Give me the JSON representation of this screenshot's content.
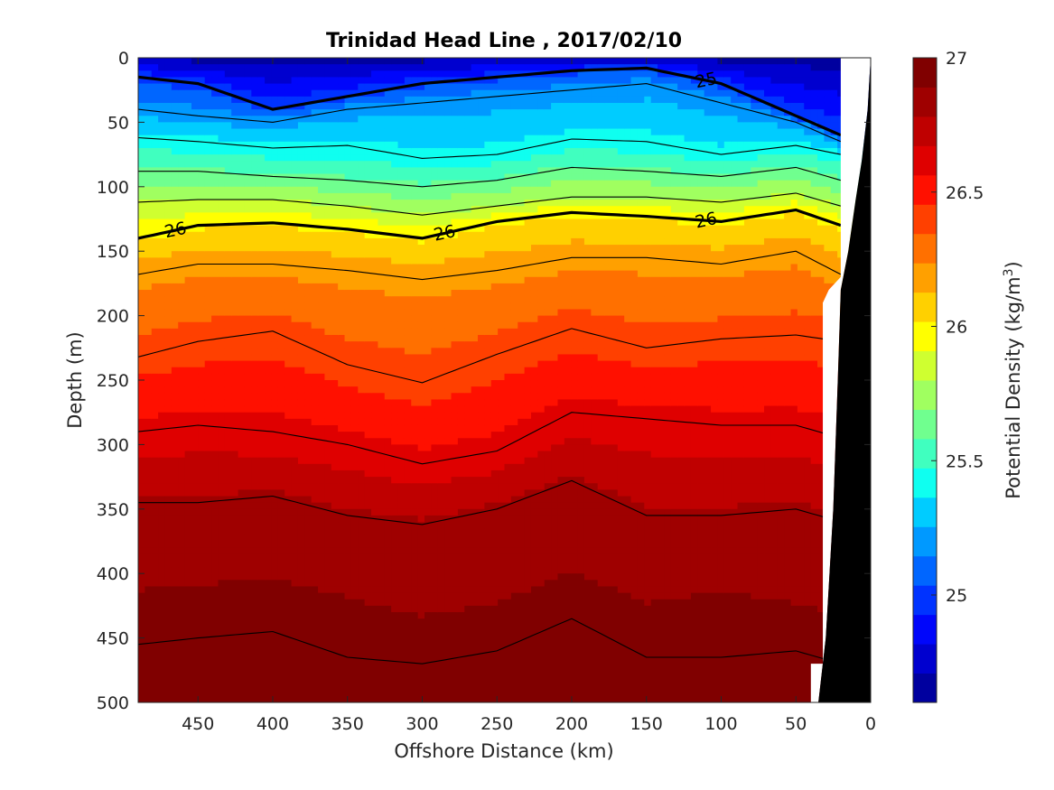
{
  "chart_data": {
    "type": "contour",
    "title": "Trinidad Head Line , 2017/02/10",
    "xlabel": "Offshore Distance (km)",
    "ylabel": "Depth (m)",
    "xlim": [
      490,
      0
    ],
    "ylim": [
      0,
      500
    ],
    "x_reversed": true,
    "y_reversed": true,
    "x_ticks": [
      450,
      400,
      350,
      300,
      250,
      200,
      150,
      100,
      50,
      0
    ],
    "y_ticks": [
      0,
      50,
      100,
      150,
      200,
      250,
      300,
      350,
      400,
      450,
      500
    ],
    "colorbar": {
      "label": "Potential Density (kg/m³)",
      "label_main": "Potential Density (kg/m",
      "label_sup": "3",
      "label_close": ")",
      "range": [
        24.6,
        27.0
      ],
      "ticks": [
        25,
        25.5,
        26,
        26.5,
        27
      ],
      "step": 0.1,
      "colors": [
        "#00009f",
        "#0000cf",
        "#0006fb",
        "#0033ff",
        "#0066ff",
        "#0099ff",
        "#00ccff",
        "#0ffff0",
        "#40ffbf",
        "#70ff8f",
        "#a0ff60",
        "#cfff30",
        "#ffff00",
        "#ffd000",
        "#ffa000",
        "#ff7000",
        "#ff4000",
        "#ff1000",
        "#df0000",
        "#bf0000",
        "#9f0000",
        "#800000"
      ]
    },
    "isopycnal_depths": {
      "x": [
        490,
        450,
        400,
        350,
        300,
        250,
        200,
        150,
        100,
        50,
        20
      ],
      "sigma_25_0": [
        15,
        20,
        40,
        30,
        20,
        15,
        10,
        8,
        20,
        45,
        60
      ],
      "sigma_25_2": [
        40,
        45,
        50,
        40,
        35,
        30,
        25,
        20,
        35,
        50,
        65
      ],
      "sigma_25_4": [
        62,
        65,
        70,
        68,
        78,
        75,
        63,
        65,
        75,
        68,
        75
      ],
      "sigma_25_6": [
        88,
        88,
        92,
        95,
        100,
        95,
        85,
        88,
        92,
        85,
        95
      ],
      "sigma_25_8": [
        112,
        110,
        110,
        115,
        122,
        115,
        108,
        108,
        112,
        105,
        115
      ],
      "sigma_26_0": [
        140,
        130,
        128,
        133,
        140,
        127,
        120,
        123,
        127,
        118,
        130
      ],
      "sigma_26_2": [
        168,
        160,
        160,
        165,
        172,
        165,
        155,
        155,
        160,
        150,
        168
      ],
      "sigma_26_4": [
        232,
        220,
        212,
        238,
        252,
        230,
        210,
        225,
        218,
        215,
        220
      ],
      "sigma_26_6": [
        290,
        285,
        290,
        300,
        315,
        305,
        275,
        280,
        285,
        285,
        295
      ],
      "sigma_26_8": [
        345,
        345,
        340,
        355,
        362,
        350,
        328,
        355,
        355,
        350,
        360
      ],
      "sigma_26_9": [
        420,
        415,
        410,
        425,
        440,
        430,
        405,
        430,
        420,
        430,
        440
      ],
      "sigma_27_0": [
        455,
        450,
        445,
        465,
        470,
        460,
        435,
        465,
        465,
        460,
        470
      ]
    },
    "contour_labels": [
      "26",
      "26",
      "26",
      "25"
    ],
    "bottom_profile_x": [
      0,
      2,
      6,
      10,
      15,
      20,
      22,
      25,
      30,
      35
    ],
    "bottom_profile_depth": [
      0,
      40,
      80,
      110,
      150,
      180,
      250,
      350,
      450,
      500
    ]
  }
}
